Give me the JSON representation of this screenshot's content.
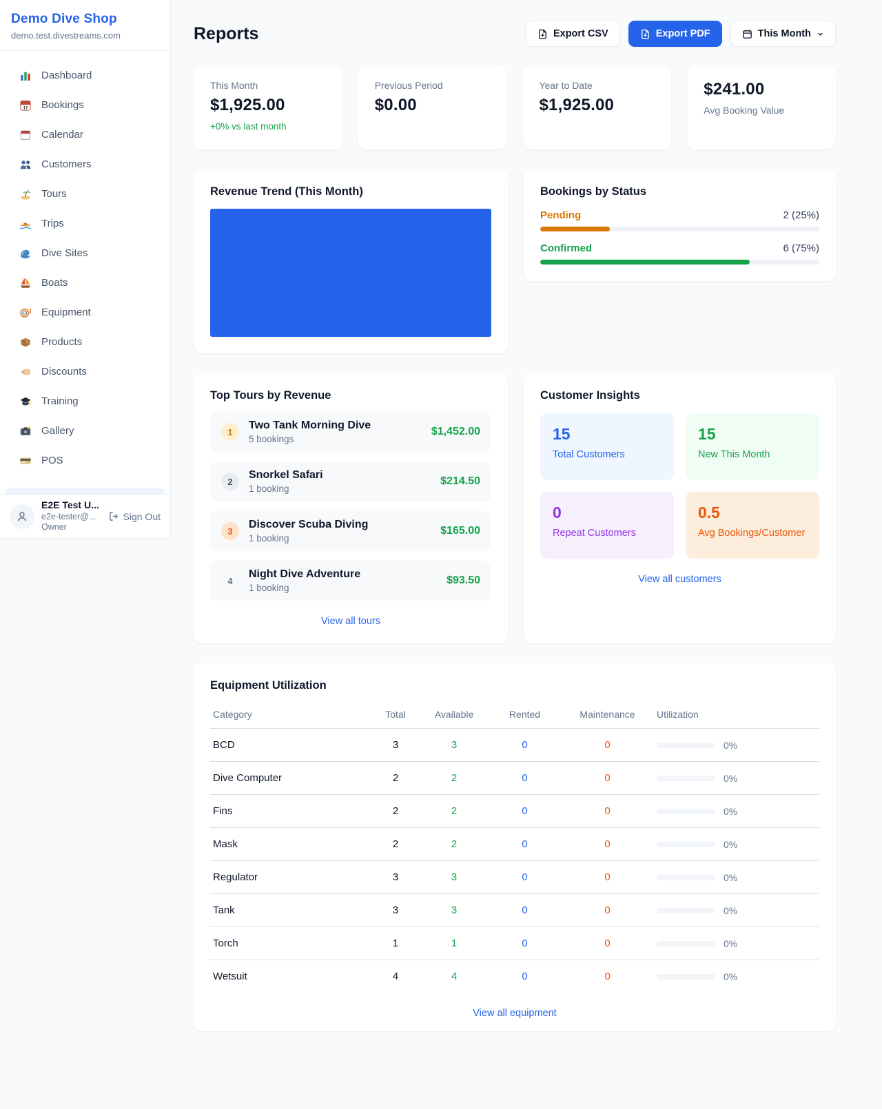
{
  "theme": {
    "accent": "#2563eb",
    "green": "#16a34a",
    "orange": "#ea580c",
    "amber": "#d97706",
    "purple": "#9333ea",
    "bg": "#f8fafc",
    "card": "#ffffff",
    "border": "#e8edf2",
    "text": "#0f172a",
    "muted": "#64748b"
  },
  "sidebar": {
    "brand": "Demo Dive Shop",
    "domain": "demo.test.divestreams.com",
    "items": [
      {
        "icon": "bar-chart-icon",
        "label": "Dashboard"
      },
      {
        "icon": "calendar-date-icon",
        "label": "Bookings"
      },
      {
        "icon": "tear-off-calendar-icon",
        "label": "Calendar"
      },
      {
        "icon": "users-icon",
        "label": "Customers"
      },
      {
        "icon": "island-icon",
        "label": "Tours"
      },
      {
        "icon": "speedboat-icon",
        "label": "Trips"
      },
      {
        "icon": "wave-icon",
        "label": "Dive Sites"
      },
      {
        "icon": "sailboat-icon",
        "label": "Boats"
      },
      {
        "icon": "dive-mask-icon",
        "label": "Equipment"
      },
      {
        "icon": "package-icon",
        "label": "Products"
      },
      {
        "icon": "tag-icon",
        "label": "Discounts"
      },
      {
        "icon": "graduation-cap-icon",
        "label": "Training"
      },
      {
        "icon": "camera-icon",
        "label": "Gallery"
      },
      {
        "icon": "credit-card-icon",
        "label": "POS"
      }
    ],
    "user": {
      "name": "E2E Test U...",
      "email": "e2e-tester@...",
      "role": "Owner",
      "signout_label": "Sign Out"
    }
  },
  "header": {
    "title": "Reports",
    "export_csv_label": "Export CSV",
    "export_pdf_label": "Export PDF",
    "period_label": "This Month"
  },
  "stats": [
    {
      "label": "This Month",
      "value": "$1,925.00",
      "delta": "+0% vs last month"
    },
    {
      "label": "Previous Period",
      "value": "$0.00"
    },
    {
      "label": "Year to Date",
      "value": "$1,925.00"
    },
    {
      "label": "Avg Booking Value",
      "value": "$241.00"
    }
  ],
  "revenue_trend": {
    "title": "Revenue Trend (This Month)"
  },
  "chart_data": {
    "type": "bar",
    "title": "Revenue Trend (This Month)",
    "categories": [
      "This Month"
    ],
    "values": [
      1925
    ],
    "ylim": [
      0,
      1925
    ],
    "note": "single solid blue bar filling the entire plot area; no axes, gridlines or tick labels visible",
    "bar_color": "#2563eb"
  },
  "bookings_by_status": {
    "title": "Bookings by Status",
    "rows": [
      {
        "label": "Pending",
        "count": "2 (25%)",
        "pct": 25,
        "color": "#d97706"
      },
      {
        "label": "Confirmed",
        "count": "6 (75%)",
        "pct": 75,
        "color": "#16a34a"
      }
    ]
  },
  "top_tours": {
    "title": "Top Tours by Revenue",
    "items": [
      {
        "rank": "1",
        "name": "Two Tank Morning Dive",
        "bookings": "5 bookings",
        "revenue": "$1,452.00"
      },
      {
        "rank": "2",
        "name": "Snorkel Safari",
        "bookings": "1 booking",
        "revenue": "$214.50"
      },
      {
        "rank": "3",
        "name": "Discover Scuba Diving",
        "bookings": "1 booking",
        "revenue": "$165.00"
      },
      {
        "rank": "4",
        "name": "Night Dive Adventure",
        "bookings": "1 booking",
        "revenue": "$93.50"
      }
    ],
    "view_all_label": "View all tours"
  },
  "customer_insights": {
    "title": "Customer Insights",
    "tiles": [
      {
        "value": "15",
        "label": "Total Customers",
        "scheme": "blue"
      },
      {
        "value": "15",
        "label": "New This Month",
        "scheme": "green"
      },
      {
        "value": "0",
        "label": "Repeat Customers",
        "scheme": "purple"
      },
      {
        "value": "0.5",
        "label": "Avg Bookings/Customer",
        "scheme": "orange"
      }
    ],
    "view_all_label": "View all customers"
  },
  "equipment": {
    "title": "Equipment Utilization",
    "columns": [
      "Category",
      "Total",
      "Available",
      "Rented",
      "Maintenance",
      "Utilization"
    ],
    "rows": [
      {
        "category": "BCD",
        "total": "3",
        "available": "3",
        "rented": "0",
        "maintenance": "0",
        "utilization": "0%",
        "util_pct": 0
      },
      {
        "category": "Dive Computer",
        "total": "2",
        "available": "2",
        "rented": "0",
        "maintenance": "0",
        "utilization": "0%",
        "util_pct": 0
      },
      {
        "category": "Fins",
        "total": "2",
        "available": "2",
        "rented": "0",
        "maintenance": "0",
        "utilization": "0%",
        "util_pct": 0
      },
      {
        "category": "Mask",
        "total": "2",
        "available": "2",
        "rented": "0",
        "maintenance": "0",
        "utilization": "0%",
        "util_pct": 0
      },
      {
        "category": "Regulator",
        "total": "3",
        "available": "3",
        "rented": "0",
        "maintenance": "0",
        "utilization": "0%",
        "util_pct": 0
      },
      {
        "category": "Tank",
        "total": "3",
        "available": "3",
        "rented": "0",
        "maintenance": "0",
        "utilization": "0%",
        "util_pct": 0
      },
      {
        "category": "Torch",
        "total": "1",
        "available": "1",
        "rented": "0",
        "maintenance": "0",
        "utilization": "0%",
        "util_pct": 0
      },
      {
        "category": "Wetsuit",
        "total": "4",
        "available": "4",
        "rented": "0",
        "maintenance": "0",
        "utilization": "0%",
        "util_pct": 0
      }
    ],
    "view_all_label": "View all equipment"
  }
}
